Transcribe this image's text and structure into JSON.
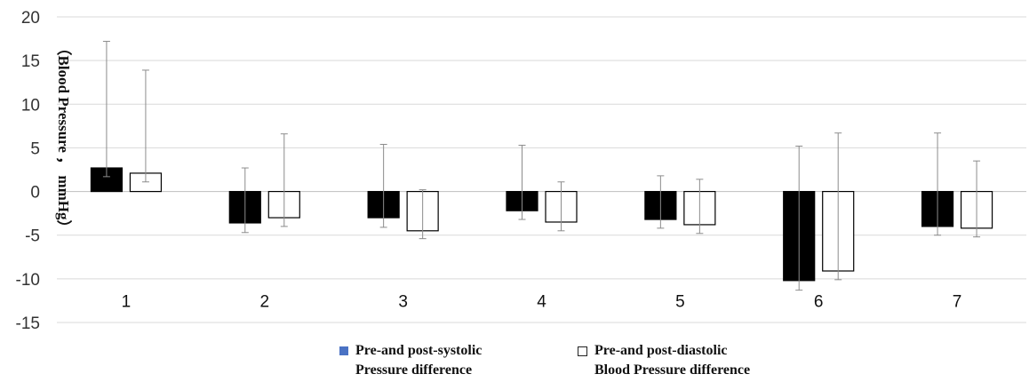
{
  "chart_data": {
    "type": "bar",
    "title": "",
    "xlabel": "",
    "ylabel": "（Blood Pressure ， mmHg）",
    "ylim": [
      -15,
      20
    ],
    "yticks": [
      20,
      15,
      10,
      5,
      0,
      -5,
      -10,
      -15
    ],
    "grid": true,
    "legend_position": "bottom",
    "categories": [
      "1",
      "2",
      "3",
      "4",
      "5",
      "6",
      "7"
    ],
    "series": [
      {
        "name": "Pre-and post-systolic Pressure difference",
        "fill": "#000000",
        "values": [
          2.7,
          -3.6,
          -3.0,
          -2.2,
          -3.2,
          -10.2,
          -4.0
        ],
        "err_low": [
          1.7,
          -4.7,
          -4.1,
          -3.2,
          -4.2,
          -11.3,
          -5.0
        ],
        "err_high": [
          17.2,
          2.7,
          5.4,
          5.3,
          1.8,
          5.2,
          6.7
        ]
      },
      {
        "name": "Pre-and post-diastolic Blood Pressure difference",
        "fill": "#ffffff",
        "values": [
          2.1,
          -3.0,
          -4.5,
          -3.5,
          -3.8,
          -9.1,
          -4.2
        ],
        "err_low": [
          1.1,
          -4.0,
          -5.4,
          -4.5,
          -4.8,
          -10.1,
          -5.2
        ],
        "err_high": [
          13.9,
          6.6,
          0.2,
          1.1,
          1.4,
          6.7,
          3.5
        ]
      }
    ],
    "legend": {
      "item1_line1": "Pre-and post-systolic",
      "item1_line2": "Pressure difference",
      "item2_line1": "Pre-and post-diastolic",
      "item2_line2": "Blood Pressure difference",
      "item1_color": "#4a72c4"
    }
  }
}
